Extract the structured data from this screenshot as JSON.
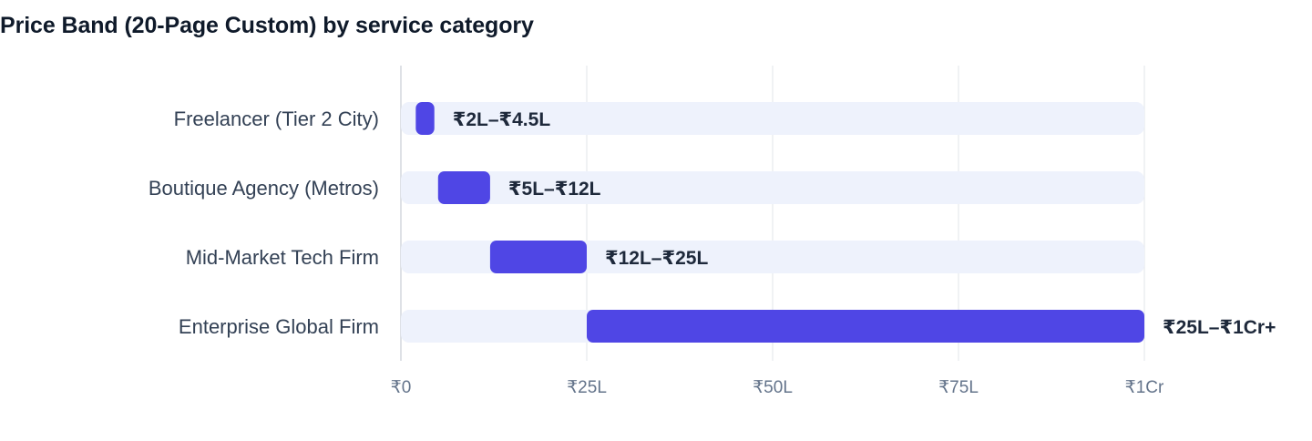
{
  "title": "Price Band (20-Page Custom) by service category",
  "colors": {
    "bar": "#4f46e5",
    "track": "#eef2fc",
    "grid": "#e2e4ea",
    "axis": "#d4d7de"
  },
  "chart_data": {
    "type": "bar",
    "orientation": "horizontal",
    "style": "floating-range",
    "title": "Price Band (20-Page Custom) by service category",
    "unit": "Lakh INR",
    "categories": [
      "Freelancer (Tier 2 City)",
      "Boutique Agency (Metros)",
      "Mid-Market Tech Firm",
      "Enterprise Global Firm"
    ],
    "ranges": [
      [
        2,
        4.5
      ],
      [
        5,
        12
      ],
      [
        12,
        25
      ],
      [
        25,
        100
      ]
    ],
    "value_labels": [
      "₹2L–₹4.5L",
      "₹5L–₹12L",
      "₹12L–₹25L",
      "₹25L–₹1Cr+"
    ],
    "xlim": [
      0,
      100
    ],
    "xticks": [
      0,
      25,
      50,
      75,
      100
    ],
    "xtick_labels": [
      "₹0",
      "₹25L",
      "₹50L",
      "₹75L",
      "₹1Cr"
    ],
    "grid": true,
    "legend": "none"
  }
}
